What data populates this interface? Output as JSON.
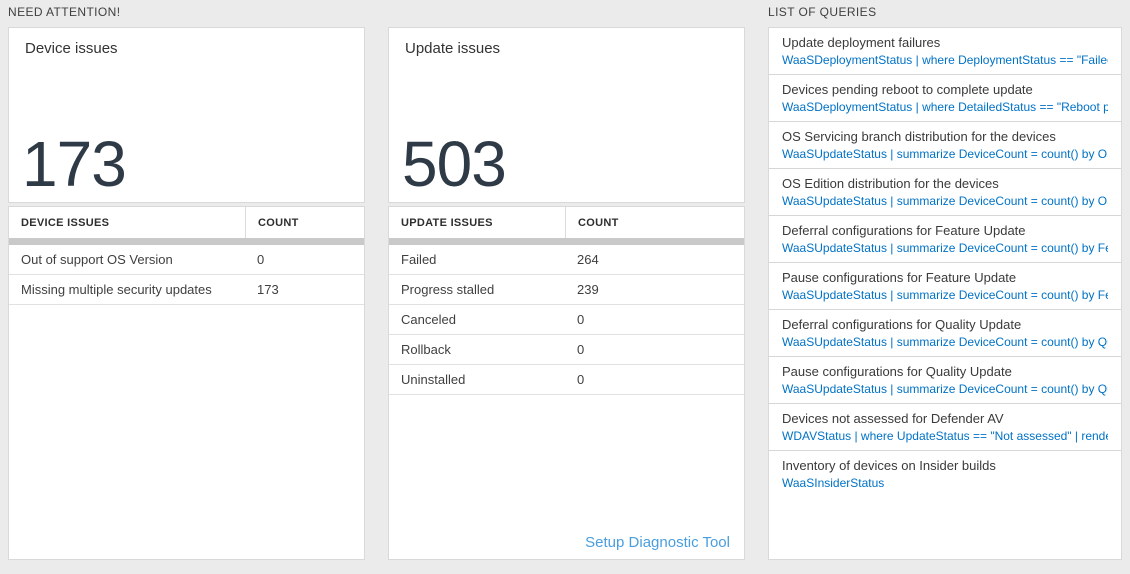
{
  "sections": {
    "need_attention_label": "NEED ATTENTION!",
    "list_of_queries_label": "LIST OF QUERIES"
  },
  "device_card": {
    "title": "Device issues",
    "count": "173",
    "table": {
      "headers": [
        "DEVICE ISSUES",
        "COUNT"
      ],
      "rows": [
        {
          "label": "Out of support OS Version",
          "count": "0"
        },
        {
          "label": "Missing multiple security updates",
          "count": "173"
        }
      ]
    }
  },
  "update_card": {
    "title": "Update issues",
    "count": "503",
    "table": {
      "headers": [
        "UPDATE ISSUES",
        "COUNT"
      ],
      "rows": [
        {
          "label": "Failed",
          "count": "264"
        },
        {
          "label": "Progress stalled",
          "count": "239"
        },
        {
          "label": "Canceled",
          "count": "0"
        },
        {
          "label": "Rollback",
          "count": "0"
        },
        {
          "label": "Uninstalled",
          "count": "0"
        }
      ]
    },
    "footer_link": "Setup Diagnostic Tool"
  },
  "queries": {
    "items": [
      {
        "title": "Update deployment failures",
        "query": "WaaSDeploymentStatus | where DeploymentStatus == \"Failed\" |..."
      },
      {
        "title": "Devices pending reboot to complete update",
        "query": "WaaSDeploymentStatus | where DetailedStatus == \"Reboot pend..."
      },
      {
        "title": "OS Servicing branch distribution for the devices",
        "query": "WaaSUpdateStatus | summarize DeviceCount = count() by OSSer..."
      },
      {
        "title": "OS Edition distribution for the devices",
        "query": "WaaSUpdateStatus | summarize DeviceCount = count() by OSEdit..."
      },
      {
        "title": "Deferral configurations for Feature Update",
        "query": "WaaSUpdateStatus | summarize DeviceCount = count() by Featur..."
      },
      {
        "title": "Pause configurations for Feature Update",
        "query": "WaaSUpdateStatus | summarize DeviceCount = count() by Featur..."
      },
      {
        "title": "Deferral configurations for Quality Update",
        "query": "WaaSUpdateStatus | summarize DeviceCount = count() by Qualit..."
      },
      {
        "title": "Pause configurations for Quality Update",
        "query": "WaaSUpdateStatus | summarize DeviceCount = count() by Qualit..."
      },
      {
        "title": "Devices not assessed for Defender AV",
        "query": "WDAVStatus | where UpdateStatus == \"Not assessed\" | render ta..."
      },
      {
        "title": "Inventory of devices on Insider builds",
        "query": "WaaSInsiderStatus"
      }
    ]
  },
  "colors": {
    "background": "#ebebeb",
    "big_number": "#2f3a47",
    "query_link": "#0072c6",
    "footer_link": "#4a9ede",
    "table_scroll_bar": "#c9c9c9"
  }
}
